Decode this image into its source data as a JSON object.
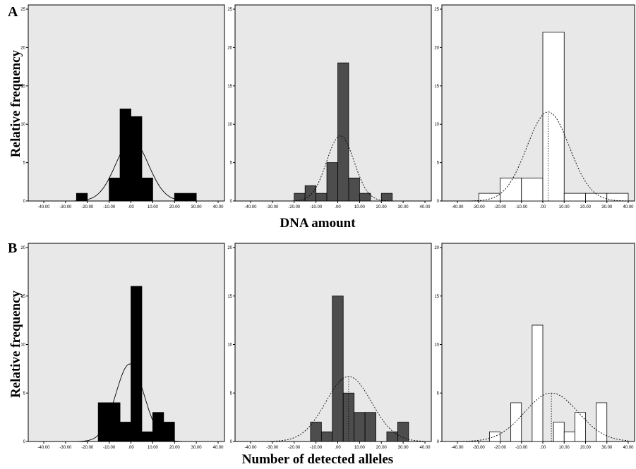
{
  "figure": {
    "letters": [
      "A",
      "B"
    ],
    "rows": [
      {
        "ylabel": "Relative frequency",
        "xlabel": "DNA amount"
      },
      {
        "ylabel": "Relative frequency",
        "xlabel": "Number of detected alleles"
      }
    ]
  },
  "colors": {
    "background": "#e8e8e8",
    "black": "#000000",
    "dark": "#4d4d4d",
    "white": "#ffffff"
  },
  "chart_data": [
    {
      "type": "bar",
      "row": "A",
      "column": 1,
      "fill": "black",
      "curve": "solid",
      "mean_line": false,
      "xlim": [
        -40,
        40
      ],
      "ylim": [
        0,
        25
      ],
      "xticks": [
        "-40.00",
        "-30.00",
        "-20.00",
        "-10.00",
        ".00",
        "10.00",
        "20.00",
        "30.00",
        "40.00"
      ],
      "yticks": [
        "0",
        "5",
        "10",
        "15",
        "20",
        "25"
      ],
      "bins": [
        {
          "x0": -25,
          "x1": -20,
          "y": 1
        },
        {
          "x0": -10,
          "x1": -5,
          "y": 3
        },
        {
          "x0": -5,
          "x1": 0,
          "y": 12
        },
        {
          "x0": 0,
          "x1": 5,
          "y": 11
        },
        {
          "x0": 5,
          "x1": 10,
          "y": 3
        },
        {
          "x0": 20,
          "x1": 25,
          "y": 1
        },
        {
          "x0": 25,
          "x1": 30,
          "y": 1
        }
      ],
      "normal": {
        "mean": 0.5,
        "sd": 7.5,
        "peak": 7.9
      }
    },
    {
      "type": "bar",
      "row": "A",
      "column": 2,
      "fill": "dark",
      "curve": "dotted",
      "mean_line": false,
      "xlim": [
        -40,
        40
      ],
      "ylim": [
        0,
        25
      ],
      "xticks": [
        "-40.00",
        "-30.00",
        "-20.00",
        "-10.00",
        ".00",
        "10.00",
        "20.00",
        "30.00",
        "40.00"
      ],
      "yticks": [
        "0",
        "5",
        "10",
        "15",
        "20",
        "25"
      ],
      "bins": [
        {
          "x0": -20,
          "x1": -15,
          "y": 1
        },
        {
          "x0": -15,
          "x1": -10,
          "y": 2
        },
        {
          "x0": -10,
          "x1": -5,
          "y": 1
        },
        {
          "x0": -5,
          "x1": 0,
          "y": 5
        },
        {
          "x0": 0,
          "x1": 5,
          "y": 18
        },
        {
          "x0": 5,
          "x1": 10,
          "y": 3
        },
        {
          "x0": 10,
          "x1": 15,
          "y": 1
        },
        {
          "x0": 20,
          "x1": 25,
          "y": 1
        }
      ],
      "normal": {
        "mean": 1.2,
        "sd": 6.3,
        "peak": 8.5
      }
    },
    {
      "type": "bar",
      "row": "A",
      "column": 3,
      "fill": "white",
      "curve": "dotted",
      "mean_line": true,
      "xlim": [
        -40,
        40
      ],
      "ylim": [
        0,
        25
      ],
      "xticks": [
        "-40.00",
        "-30.00",
        "-20.00",
        "-10.00",
        ".00",
        "10.00",
        "20.00",
        "30.00",
        "40.00"
      ],
      "yticks": [
        "0",
        "5",
        "10",
        "15",
        "20",
        "25"
      ],
      "bins": [
        {
          "x0": -30,
          "x1": -20,
          "y": 1
        },
        {
          "x0": -20,
          "x1": -10,
          "y": 3
        },
        {
          "x0": -10,
          "x1": 0,
          "y": 3
        },
        {
          "x0": 0,
          "x1": 10,
          "y": 22
        },
        {
          "x0": 10,
          "x1": 20,
          "y": 1
        },
        {
          "x0": 20,
          "x1": 30,
          "y": 1
        },
        {
          "x0": 30,
          "x1": 40,
          "y": 1
        }
      ],
      "normal": {
        "mean": 2.5,
        "sd": 10.0,
        "peak": 11.6
      }
    },
    {
      "type": "bar",
      "row": "B",
      "column": 1,
      "fill": "black",
      "curve": "solid",
      "mean_line": false,
      "xlim": [
        -40,
        40
      ],
      "ylim": [
        0,
        20
      ],
      "xticks": [
        "-40.00",
        "-30.00",
        "-20.00",
        "-10.00",
        ".00",
        "10.00",
        "20.00",
        "30.00",
        "40.00"
      ],
      "yticks": [
        "0",
        "5",
        "10",
        "15",
        "20"
      ],
      "bins": [
        {
          "x0": -15,
          "x1": -10,
          "y": 4
        },
        {
          "x0": -10,
          "x1": -5,
          "y": 4
        },
        {
          "x0": -5,
          "x1": 0,
          "y": 2
        },
        {
          "x0": 0,
          "x1": 5,
          "y": 16
        },
        {
          "x0": 5,
          "x1": 10,
          "y": 1
        },
        {
          "x0": 10,
          "x1": 15,
          "y": 3
        },
        {
          "x0": 15,
          "x1": 20,
          "y": 2
        }
      ],
      "normal": {
        "mean": -0.5,
        "sd": 6.5,
        "peak": 8.0
      }
    },
    {
      "type": "bar",
      "row": "B",
      "column": 2,
      "fill": "dark",
      "curve": "dotted",
      "mean_line": true,
      "xlim": [
        -40,
        40
      ],
      "ylim": [
        0,
        20
      ],
      "xticks": [
        "-40.00",
        "-30.00",
        "-20.00",
        "-10.00",
        ".00",
        "10.00",
        "20.00",
        "30.00",
        "40.00"
      ],
      "yticks": [
        "0",
        "5",
        "10",
        "15",
        "20"
      ],
      "bins": [
        {
          "x0": -12.5,
          "x1": -7.5,
          "y": 2
        },
        {
          "x0": -7.5,
          "x1": -2.5,
          "y": 1
        },
        {
          "x0": -2.5,
          "x1": 2.5,
          "y": 15
        },
        {
          "x0": 2.5,
          "x1": 7.5,
          "y": 5
        },
        {
          "x0": 7.5,
          "x1": 12.5,
          "y": 3
        },
        {
          "x0": 12.5,
          "x1": 17.5,
          "y": 3
        },
        {
          "x0": 22.5,
          "x1": 27.5,
          "y": 1
        },
        {
          "x0": 27.5,
          "x1": 32.5,
          "y": 2
        }
      ],
      "normal": {
        "mean": 5.0,
        "sd": 10.5,
        "peak": 6.7
      }
    },
    {
      "type": "bar",
      "row": "B",
      "column": 3,
      "fill": "white",
      "curve": "dotted",
      "mean_line": true,
      "xlim": [
        -40,
        40
      ],
      "ylim": [
        0,
        20
      ],
      "xticks": [
        "-40.00",
        "-30.00",
        "-20.00",
        "-10.00",
        ".00",
        "10.00",
        "20.00",
        "30.00",
        "40.00"
      ],
      "yticks": [
        "0",
        "5",
        "10",
        "15",
        "20"
      ],
      "bins": [
        {
          "x0": -25,
          "x1": -20,
          "y": 1
        },
        {
          "x0": -15,
          "x1": -10,
          "y": 4
        },
        {
          "x0": -5,
          "x1": 0,
          "y": 12
        },
        {
          "x0": 5,
          "x1": 10,
          "y": 2
        },
        {
          "x0": 10,
          "x1": 15,
          "y": 1
        },
        {
          "x0": 15,
          "x1": 20,
          "y": 3
        },
        {
          "x0": 25,
          "x1": 30,
          "y": 4
        }
      ],
      "normal": {
        "mean": 4.0,
        "sd": 12.5,
        "peak": 5.0
      }
    }
  ]
}
